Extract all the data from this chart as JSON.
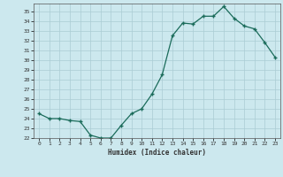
{
  "x": [
    0,
    1,
    2,
    3,
    4,
    5,
    6,
    7,
    8,
    9,
    10,
    11,
    12,
    13,
    14,
    15,
    16,
    17,
    18,
    19,
    20,
    21,
    22,
    23
  ],
  "y": [
    24.5,
    24.0,
    24.0,
    23.8,
    23.7,
    22.3,
    22.0,
    22.0,
    23.3,
    24.5,
    25.0,
    26.5,
    28.5,
    32.5,
    33.8,
    33.7,
    34.5,
    34.5,
    35.5,
    34.3,
    33.5,
    33.2,
    31.8,
    30.3
  ],
  "xlabel": "Humidex (Indice chaleur)",
  "xlim": [
    -0.5,
    23.5
  ],
  "ylim": [
    22,
    35.8
  ],
  "yticks": [
    22,
    23,
    24,
    25,
    26,
    27,
    28,
    29,
    30,
    31,
    32,
    33,
    34,
    35
  ],
  "xticks": [
    0,
    1,
    2,
    3,
    4,
    5,
    6,
    7,
    8,
    9,
    10,
    11,
    12,
    13,
    14,
    15,
    16,
    17,
    18,
    19,
    20,
    21,
    22,
    23
  ],
  "line_color": "#1a6b5a",
  "bg_color": "#cce8ee",
  "grid_color": "#aaccd4",
  "text_color": "#333333"
}
